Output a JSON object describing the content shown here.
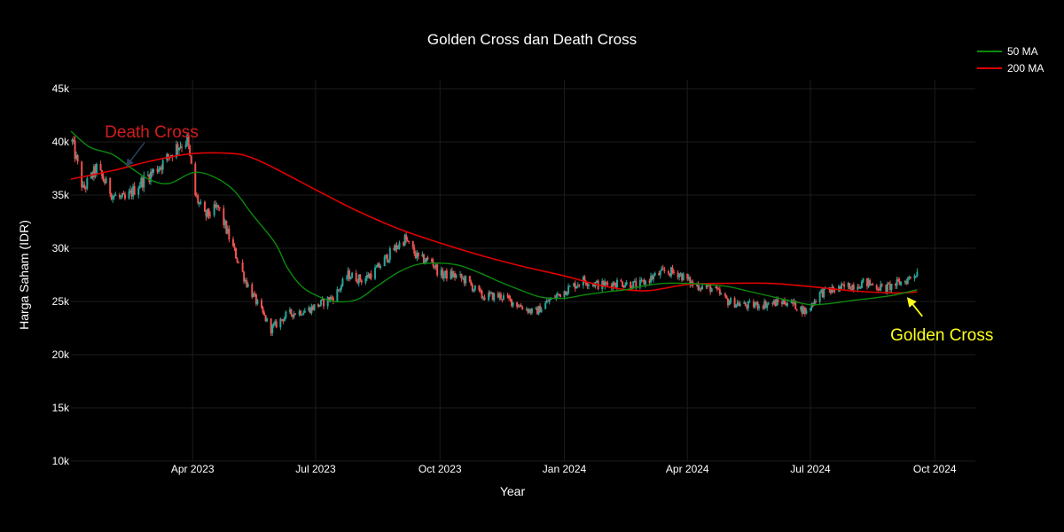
{
  "chart_data": {
    "type": "candlestick",
    "title": "Golden Cross dan Death Cross",
    "xlabel": "Year",
    "ylabel": "Harga Saham (IDR)",
    "ylim": [
      10000,
      45000
    ],
    "y_ticks": [
      {
        "value": 10000,
        "label": "10k"
      },
      {
        "value": 15000,
        "label": "15k"
      },
      {
        "value": 20000,
        "label": "20k"
      },
      {
        "value": 25000,
        "label": "25k"
      },
      {
        "value": 30000,
        "label": "30k"
      },
      {
        "value": 35000,
        "label": "35k"
      },
      {
        "value": 40000,
        "label": "40k"
      },
      {
        "value": 45000,
        "label": "45k"
      }
    ],
    "x_range": [
      "2023-01-01",
      "2024-10-31"
    ],
    "x_ticks": [
      {
        "date": "2023-04-01",
        "label": "Apr 2023"
      },
      {
        "date": "2023-07-01",
        "label": "Jul 2023"
      },
      {
        "date": "2023-10-01",
        "label": "Oct 2023"
      },
      {
        "date": "2024-01-01",
        "label": "Jan 2024"
      },
      {
        "date": "2024-04-01",
        "label": "Apr 2024"
      },
      {
        "date": "2024-07-01",
        "label": "Jul 2024"
      },
      {
        "date": "2024-10-01",
        "label": "Oct 2024"
      }
    ],
    "grid": true,
    "legend_position": "top-right",
    "colors": {
      "up": "#26a69a",
      "down": "#ef5350",
      "ma50": "#0b8a0b",
      "ma200": "#e00000",
      "death_label": "#d41c1c",
      "death_arrow": "#2a3f5f",
      "golden_label": "#ffff1a",
      "golden_arrow": "#ffff1a"
    },
    "price_anchors": [
      [
        "2023-01-02",
        40000
      ],
      [
        "2023-01-10",
        35500
      ],
      [
        "2023-01-20",
        37500
      ],
      [
        "2023-02-01",
        35000
      ],
      [
        "2023-02-10",
        34500
      ],
      [
        "2023-02-20",
        36000
      ],
      [
        "2023-03-01",
        37000
      ],
      [
        "2023-03-10",
        38000
      ],
      [
        "2023-03-20",
        39500
      ],
      [
        "2023-03-28",
        40200
      ],
      [
        "2023-04-03",
        35000
      ],
      [
        "2023-04-10",
        33000
      ],
      [
        "2023-04-20",
        33800
      ],
      [
        "2023-05-01",
        30000
      ],
      [
        "2023-05-10",
        27000
      ],
      [
        "2023-05-20",
        24500
      ],
      [
        "2023-05-29",
        22400
      ],
      [
        "2023-06-10",
        23800
      ],
      [
        "2023-06-25",
        24200
      ],
      [
        "2023-07-05",
        24800
      ],
      [
        "2023-07-15",
        25500
      ],
      [
        "2023-07-25",
        27500
      ],
      [
        "2023-08-05",
        27000
      ],
      [
        "2023-08-15",
        28000
      ],
      [
        "2023-08-25",
        29500
      ],
      [
        "2023-09-05",
        30900
      ],
      [
        "2023-09-15",
        29000
      ],
      [
        "2023-09-25",
        28800
      ],
      [
        "2023-10-01",
        27500
      ],
      [
        "2023-10-10",
        27500
      ],
      [
        "2023-10-20",
        27000
      ],
      [
        "2023-11-01",
        25500
      ],
      [
        "2023-11-15",
        25500
      ],
      [
        "2023-12-01",
        24500
      ],
      [
        "2023-12-10",
        23900
      ],
      [
        "2023-12-20",
        25000
      ],
      [
        "2024-01-01",
        26000
      ],
      [
        "2024-01-15",
        27000
      ],
      [
        "2024-01-28",
        26500
      ],
      [
        "2024-02-10",
        26800
      ],
      [
        "2024-02-25",
        26500
      ],
      [
        "2024-03-05",
        27200
      ],
      [
        "2024-03-15",
        27800
      ],
      [
        "2024-03-25",
        27700
      ],
      [
        "2024-04-05",
        26600
      ],
      [
        "2024-04-20",
        26200
      ],
      [
        "2024-05-01",
        25000
      ],
      [
        "2024-05-15",
        24600
      ],
      [
        "2024-06-01",
        24800
      ],
      [
        "2024-06-15",
        25000
      ],
      [
        "2024-06-28",
        24000
      ],
      [
        "2024-07-08",
        25800
      ],
      [
        "2024-07-25",
        26300
      ],
      [
        "2024-08-10",
        26800
      ],
      [
        "2024-08-25",
        26200
      ],
      [
        "2024-09-10",
        27000
      ],
      [
        "2024-09-18",
        27800
      ]
    ],
    "ma50": [
      [
        "2023-01-01",
        41000
      ],
      [
        "2023-01-15",
        39500
      ],
      [
        "2023-02-01",
        38800
      ],
      [
        "2023-02-15",
        37500
      ],
      [
        "2023-03-01",
        36400
      ],
      [
        "2023-03-15",
        36100
      ],
      [
        "2023-04-01",
        37100
      ],
      [
        "2023-04-15",
        36800
      ],
      [
        "2023-05-01",
        35500
      ],
      [
        "2023-05-15",
        33200
      ],
      [
        "2023-06-01",
        30500
      ],
      [
        "2023-06-10",
        28200
      ],
      [
        "2023-06-20",
        26500
      ],
      [
        "2023-07-01",
        25600
      ],
      [
        "2023-07-15",
        25000
      ],
      [
        "2023-08-01",
        25200
      ],
      [
        "2023-08-15",
        26400
      ],
      [
        "2023-09-01",
        27800
      ],
      [
        "2023-09-15",
        28500
      ],
      [
        "2023-10-01",
        28600
      ],
      [
        "2023-10-15",
        28400
      ],
      [
        "2023-11-01",
        27600
      ],
      [
        "2023-11-15",
        26800
      ],
      [
        "2023-12-01",
        26000
      ],
      [
        "2023-12-15",
        25400
      ],
      [
        "2024-01-01",
        25300
      ],
      [
        "2024-01-15",
        25600
      ],
      [
        "2024-02-01",
        25900
      ],
      [
        "2024-02-15",
        26100
      ],
      [
        "2024-03-01",
        26500
      ],
      [
        "2024-03-15",
        26700
      ],
      [
        "2024-04-01",
        26700
      ],
      [
        "2024-04-15",
        26600
      ],
      [
        "2024-05-01",
        26400
      ],
      [
        "2024-05-15",
        26000
      ],
      [
        "2024-06-01",
        25500
      ],
      [
        "2024-06-15",
        25100
      ],
      [
        "2024-07-01",
        24700
      ],
      [
        "2024-07-15",
        24800
      ],
      [
        "2024-08-01",
        25100
      ],
      [
        "2024-08-15",
        25300
      ],
      [
        "2024-09-01",
        25600
      ],
      [
        "2024-09-18",
        26100
      ]
    ],
    "ma200": [
      [
        "2023-01-01",
        36500
      ],
      [
        "2023-02-01",
        37300
      ],
      [
        "2023-03-01",
        38200
      ],
      [
        "2023-04-01",
        38900
      ],
      [
        "2023-05-01",
        38900
      ],
      [
        "2023-05-15",
        38500
      ],
      [
        "2023-06-01",
        37500
      ],
      [
        "2023-07-01",
        35500
      ],
      [
        "2023-08-01",
        33500
      ],
      [
        "2023-09-01",
        31800
      ],
      [
        "2023-10-01",
        30500
      ],
      [
        "2023-11-01",
        29300
      ],
      [
        "2023-12-01",
        28300
      ],
      [
        "2024-01-01",
        27400
      ],
      [
        "2024-02-01",
        26400
      ],
      [
        "2024-03-01",
        26000
      ],
      [
        "2024-04-01",
        26600
      ],
      [
        "2024-05-01",
        26700
      ],
      [
        "2024-06-01",
        26700
      ],
      [
        "2024-07-01",
        26400
      ],
      [
        "2024-08-01",
        26000
      ],
      [
        "2024-09-01",
        25800
      ],
      [
        "2024-09-18",
        25900
      ]
    ],
    "series": [
      {
        "name": "50 MA"
      },
      {
        "name": "200 MA"
      }
    ],
    "annotations": [
      {
        "text": "Death Cross",
        "point_date": "2023-02-10",
        "point_value": 37600
      },
      {
        "text": "Golden Cross",
        "point_date": "2024-09-10",
        "point_value": 25600
      }
    ]
  }
}
